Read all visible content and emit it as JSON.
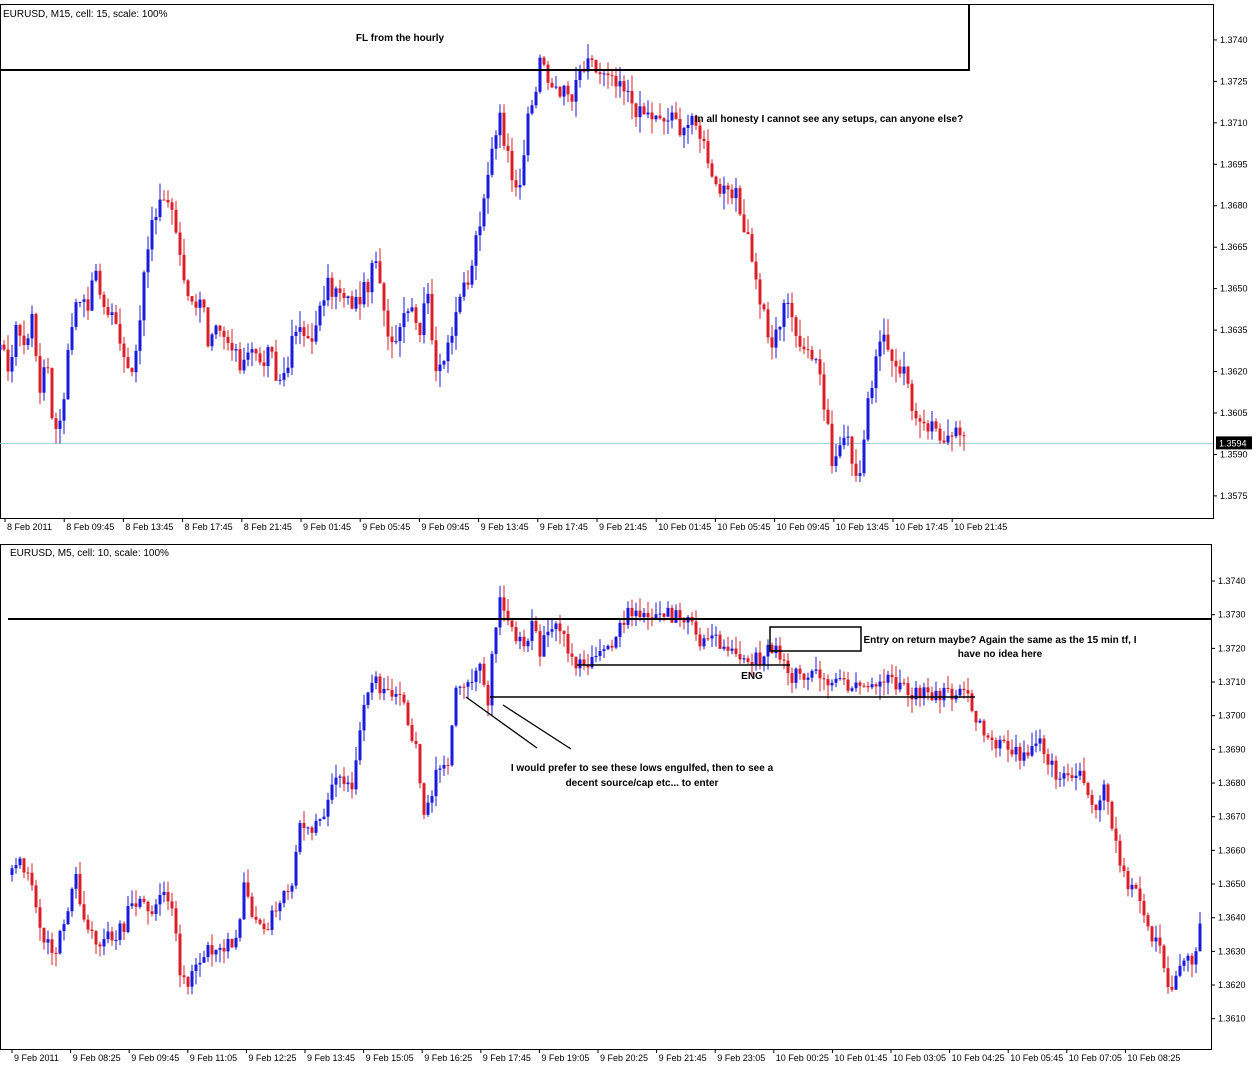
{
  "colors": {
    "bull": "#1a1adb",
    "bear": "#d8202a",
    "frame": "#000000",
    "bid_line": "#9ecfd8",
    "price_box": "#000000"
  },
  "chart_data": [
    {
      "type": "candlestick",
      "symbol_label": "EURUSD, M15, cell: 15, scale: 100%",
      "ylim": [
        1.3567,
        1.3753
      ],
      "y_ticks": [
        "1.3740",
        "1.3725",
        "1.3710",
        "1.3695",
        "1.3680",
        "1.3665",
        "1.3650",
        "1.3635",
        "1.3620",
        "1.3605",
        "1.3590",
        "1.3575"
      ],
      "x_ticks": [
        "8 Feb 2011",
        "8 Feb 09:45",
        "8 Feb 13:45",
        "8 Feb 17:45",
        "8 Feb 21:45",
        "9 Feb 01:45",
        "9 Feb 05:45",
        "9 Feb 09:45",
        "9 Feb 13:45",
        "9 Feb 17:45",
        "9 Feb 21:45",
        "10 Feb 01:45",
        "10 Feb 05:45",
        "10 Feb 09:45",
        "10 Feb 13:45",
        "10 Feb 17:45",
        "10 Feb 21:45"
      ],
      "current_price": "1.3594",
      "path": [
        [
          0,
          1.3627
        ],
        [
          10,
          1.3622
        ],
        [
          18,
          1.3638
        ],
        [
          26,
          1.3628
        ],
        [
          32,
          1.364
        ],
        [
          40,
          1.3615
        ],
        [
          48,
          1.3622
        ],
        [
          54,
          1.3597
        ],
        [
          62,
          1.3606
        ],
        [
          70,
          1.3633
        ],
        [
          78,
          1.3651
        ],
        [
          86,
          1.3641
        ],
        [
          96,
          1.3657
        ],
        [
          104,
          1.3643
        ],
        [
          112,
          1.364
        ],
        [
          120,
          1.3633
        ],
        [
          128,
          1.3622
        ],
        [
          136,
          1.3624
        ],
        [
          144,
          1.3655
        ],
        [
          152,
          1.3672
        ],
        [
          160,
          1.3683
        ],
        [
          168,
          1.3682
        ],
        [
          176,
          1.3671
        ],
        [
          184,
          1.3655
        ],
        [
          192,
          1.3644
        ],
        [
          202,
          1.3649
        ],
        [
          208,
          1.3627
        ],
        [
          216,
          1.3634
        ],
        [
          230,
          1.3629
        ],
        [
          240,
          1.3622
        ],
        [
          250,
          1.3631
        ],
        [
          260,
          1.3622
        ],
        [
          270,
          1.3627
        ],
        [
          278,
          1.3615
        ],
        [
          286,
          1.3622
        ],
        [
          296,
          1.3635
        ],
        [
          306,
          1.3632
        ],
        [
          316,
          1.3635
        ],
        [
          326,
          1.3651
        ],
        [
          336,
          1.3649
        ],
        [
          346,
          1.3645
        ],
        [
          356,
          1.3645
        ],
        [
          366,
          1.365
        ],
        [
          376,
          1.366
        ],
        [
          384,
          1.364
        ],
        [
          392,
          1.3631
        ],
        [
          400,
          1.3638
        ],
        [
          410,
          1.3647
        ],
        [
          420,
          1.3635
        ],
        [
          428,
          1.3651
        ],
        [
          436,
          1.3617
        ],
        [
          444,
          1.3627
        ],
        [
          452,
          1.3636
        ],
        [
          460,
          1.3648
        ],
        [
          468,
          1.365
        ],
        [
          476,
          1.3668
        ],
        [
          484,
          1.368
        ],
        [
          492,
          1.37
        ],
        [
          500,
          1.3715
        ],
        [
          506,
          1.37
        ],
        [
          514,
          1.369
        ],
        [
          520,
          1.369
        ],
        [
          528,
          1.371
        ],
        [
          536,
          1.3722
        ],
        [
          541,
          1.3738
        ],
        [
          548,
          1.3722
        ],
        [
          556,
          1.3724
        ],
        [
          564,
          1.3721
        ],
        [
          572,
          1.3718
        ],
        [
          580,
          1.3728
        ],
        [
          590,
          1.3731
        ],
        [
          600,
          1.3728
        ],
        [
          610,
          1.3725
        ],
        [
          620,
          1.3722
        ],
        [
          630,
          1.3719
        ],
        [
          640,
          1.3713
        ],
        [
          650,
          1.3713
        ],
        [
          660,
          1.371
        ],
        [
          670,
          1.3712
        ],
        [
          680,
          1.3709
        ],
        [
          690,
          1.371
        ],
        [
          700,
          1.3707
        ],
        [
          708,
          1.3698
        ],
        [
          716,
          1.3688
        ],
        [
          726,
          1.3683
        ],
        [
          736,
          1.3683
        ],
        [
          744,
          1.3673
        ],
        [
          750,
          1.3667
        ],
        [
          756,
          1.3652
        ],
        [
          764,
          1.364
        ],
        [
          770,
          1.3628
        ],
        [
          778,
          1.3635
        ],
        [
          786,
          1.365
        ],
        [
          794,
          1.3633
        ],
        [
          802,
          1.3632
        ],
        [
          810,
          1.3627
        ],
        [
          818,
          1.3625
        ],
        [
          826,
          1.3602
        ],
        [
          834,
          1.3585
        ],
        [
          842,
          1.3597
        ],
        [
          850,
          1.3593
        ],
        [
          858,
          1.358
        ],
        [
          866,
          1.3602
        ],
        [
          874,
          1.3622
        ],
        [
          882,
          1.3631
        ],
        [
          890,
          1.3627
        ],
        [
          898,
          1.3622
        ],
        [
          906,
          1.362
        ],
        [
          914,
          1.3604
        ],
        [
          922,
          1.3598
        ],
        [
          930,
          1.36
        ],
        [
          940,
          1.3596
        ],
        [
          950,
          1.36
        ],
        [
          958,
          1.3598
        ],
        [
          964,
          1.3594
        ]
      ]
    },
    {
      "type": "candlestick",
      "symbol_label": "EURUSD, M5, cell: 10, scale: 100%",
      "ylim": [
        1.3601,
        1.3751
      ],
      "y_ticks": [
        "1.3740",
        "1.3730",
        "1.3720",
        "1.3710",
        "1.3700",
        "1.3690",
        "1.3680",
        "1.3670",
        "1.3660",
        "1.3650",
        "1.3640",
        "1.3630",
        "1.3620",
        "1.3610"
      ],
      "x_ticks": [
        "9 Feb 2011",
        "9 Feb 08:25",
        "9 Feb 09:45",
        "9 Feb 11:05",
        "9 Feb 12:25",
        "9 Feb 13:45",
        "9 Feb 15:05",
        "9 Feb 16:25",
        "9 Feb 17:45",
        "9 Feb 19:05",
        "9 Feb 20:25",
        "9 Feb 21:45",
        "9 Feb 23:05",
        "10 Feb 00:25",
        "10 Feb 01:45",
        "10 Feb 03:05",
        "10 Feb 04:25",
        "10 Feb 05:45",
        "10 Feb 07:05",
        "10 Feb 08:25"
      ],
      "path": [
        [
          12,
          1.3653
        ],
        [
          22,
          1.3656
        ],
        [
          32,
          1.3648
        ],
        [
          40,
          1.3638
        ],
        [
          50,
          1.363
        ],
        [
          58,
          1.3632
        ],
        [
          66,
          1.3641
        ],
        [
          76,
          1.3651
        ],
        [
          84,
          1.3641
        ],
        [
          94,
          1.3632
        ],
        [
          104,
          1.3635
        ],
        [
          114,
          1.3633
        ],
        [
          124,
          1.3638
        ],
        [
          132,
          1.3646
        ],
        [
          142,
          1.3643
        ],
        [
          152,
          1.3643
        ],
        [
          162,
          1.3646
        ],
        [
          172,
          1.3645
        ],
        [
          180,
          1.3625
        ],
        [
          188,
          1.3619
        ],
        [
          196,
          1.3625
        ],
        [
          206,
          1.363
        ],
        [
          216,
          1.3629
        ],
        [
          226,
          1.3633
        ],
        [
          236,
          1.3633
        ],
        [
          244,
          1.3648
        ],
        [
          254,
          1.364
        ],
        [
          264,
          1.3635
        ],
        [
          274,
          1.3641
        ],
        [
          284,
          1.3646
        ],
        [
          292,
          1.3648
        ],
        [
          300,
          1.3667
        ],
        [
          310,
          1.3667
        ],
        [
          320,
          1.3667
        ],
        [
          328,
          1.3675
        ],
        [
          336,
          1.3681
        ],
        [
          344,
          1.368
        ],
        [
          352,
          1.368
        ],
        [
          360,
          1.3696
        ],
        [
          368,
          1.3706
        ],
        [
          376,
          1.3711
        ],
        [
          384,
          1.3706
        ],
        [
          392,
          1.3708
        ],
        [
          400,
          1.3707
        ],
        [
          408,
          1.3698
        ],
        [
          416,
          1.369
        ],
        [
          424,
          1.367
        ],
        [
          432,
          1.3678
        ],
        [
          440,
          1.3685
        ],
        [
          448,
          1.3684
        ],
        [
          456,
          1.3708
        ],
        [
          464,
          1.3711
        ],
        [
          472,
          1.3712
        ],
        [
          480,
          1.3713
        ],
        [
          488,
          1.3705
        ],
        [
          494,
          1.3726
        ],
        [
          500,
          1.3734
        ],
        [
          508,
          1.3726
        ],
        [
          516,
          1.3722
        ],
        [
          524,
          1.3722
        ],
        [
          532,
          1.3726
        ],
        [
          540,
          1.372
        ],
        [
          548,
          1.3725
        ],
        [
          556,
          1.3726
        ],
        [
          564,
          1.3726
        ],
        [
          570,
          1.3716
        ],
        [
          578,
          1.3715
        ],
        [
          586,
          1.3715
        ],
        [
          596,
          1.3717
        ],
        [
          604,
          1.372
        ],
        [
          612,
          1.3719
        ],
        [
          620,
          1.3729
        ],
        [
          630,
          1.373
        ],
        [
          640,
          1.3729
        ],
        [
          650,
          1.3728
        ],
        [
          660,
          1.3728
        ],
        [
          670,
          1.373
        ],
        [
          680,
          1.3729
        ],
        [
          690,
          1.3727
        ],
        [
          700,
          1.3723
        ],
        [
          710,
          1.3723
        ],
        [
          720,
          1.3722
        ],
        [
          730,
          1.372
        ],
        [
          740,
          1.3718
        ],
        [
          750,
          1.3717
        ],
        [
          760,
          1.3716
        ],
        [
          770,
          1.3721
        ],
        [
          778,
          1.3721
        ],
        [
          784,
          1.3715
        ],
        [
          790,
          1.371
        ],
        [
          798,
          1.3712
        ],
        [
          806,
          1.3713
        ],
        [
          814,
          1.3714
        ],
        [
          822,
          1.371
        ],
        [
          830,
          1.3709
        ],
        [
          840,
          1.3709
        ],
        [
          850,
          1.3708
        ],
        [
          860,
          1.3709
        ],
        [
          870,
          1.3708
        ],
        [
          880,
          1.3709
        ],
        [
          890,
          1.3711
        ],
        [
          900,
          1.3708
        ],
        [
          910,
          1.3707
        ],
        [
          920,
          1.3707
        ],
        [
          930,
          1.3706
        ],
        [
          940,
          1.3707
        ],
        [
          950,
          1.3706
        ],
        [
          960,
          1.3706
        ],
        [
          968,
          1.3706
        ],
        [
          976,
          1.37
        ],
        [
          984,
          1.3696
        ],
        [
          992,
          1.3691
        ],
        [
          1000,
          1.3693
        ],
        [
          1008,
          1.3689
        ],
        [
          1016,
          1.3689
        ],
        [
          1024,
          1.3688
        ],
        [
          1032,
          1.3689
        ],
        [
          1040,
          1.3691
        ],
        [
          1048,
          1.3687
        ],
        [
          1056,
          1.3683
        ],
        [
          1064,
          1.3683
        ],
        [
          1072,
          1.3683
        ],
        [
          1080,
          1.3683
        ],
        [
          1088,
          1.3675
        ],
        [
          1096,
          1.3674
        ],
        [
          1104,
          1.3678
        ],
        [
          1112,
          1.3668
        ],
        [
          1120,
          1.3657
        ],
        [
          1128,
          1.3646
        ],
        [
          1136,
          1.3651
        ],
        [
          1144,
          1.3639
        ],
        [
          1152,
          1.3633
        ],
        [
          1160,
          1.3631
        ],
        [
          1168,
          1.362
        ],
        [
          1176,
          1.3622
        ],
        [
          1184,
          1.3628
        ],
        [
          1192,
          1.3628
        ],
        [
          1202,
          1.3639
        ]
      ]
    }
  ],
  "annotations": {
    "top": {
      "fl_label": "FL from the hourly",
      "comment": "In all honesty I cannot see any setups, can anyone else?"
    },
    "bottom": {
      "eng_label": "ENG",
      "entry_line1": "Entry on return maybe? Again the same as the 15 min tf, I",
      "entry_line2": "have no idea here",
      "lows_line1": "I would prefer to see these lows engulfed, then to see a",
      "lows_line2": "decent source/cap etc... to enter"
    }
  }
}
